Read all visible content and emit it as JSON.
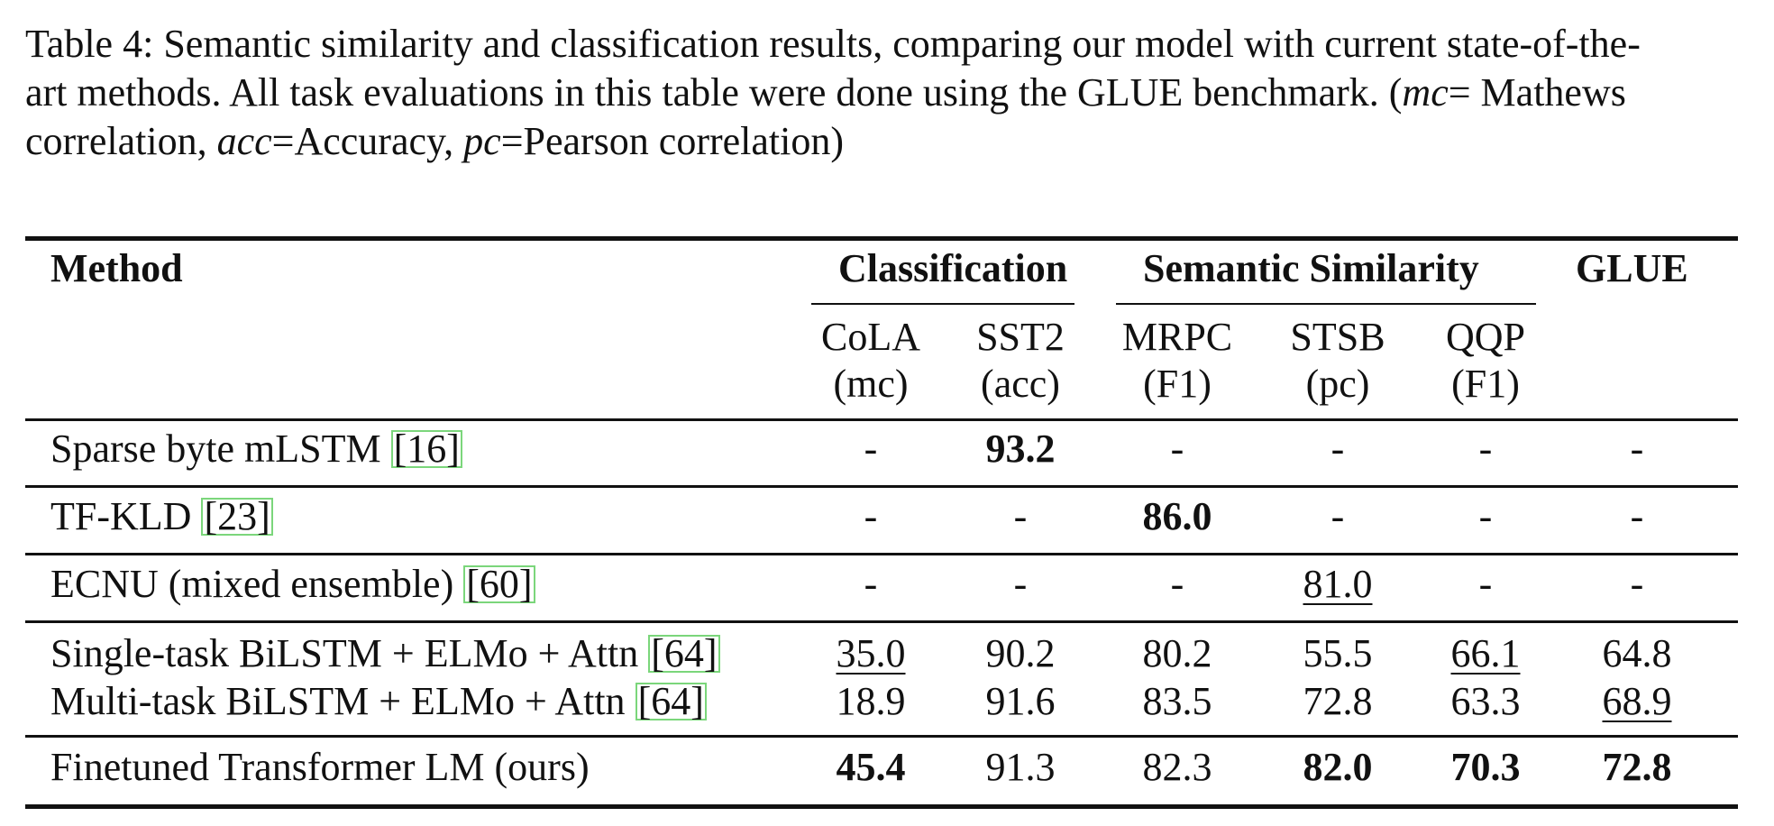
{
  "caption": {
    "line1": "Table 4: Semantic similarity and classification results, comparing our model with current state-of-the-",
    "line2_a": "art methods. All task evaluations in this table were done using the GLUE benchmark. (",
    "line2_mc": "mc",
    "line2_b": "= Mathews",
    "line3_a": "correlation, ",
    "line3_acc": "acc",
    "line3_b": "=Accuracy, ",
    "line3_pc": "pc",
    "line3_c": "=Pearson correlation)"
  },
  "header": {
    "method": "Method",
    "groups": {
      "classification": "Classification",
      "semantic": "Semantic Similarity",
      "glue": "GLUE"
    },
    "columns": [
      {
        "name": "CoLA",
        "metric": "(mc)"
      },
      {
        "name": "SST2",
        "metric": "(acc)"
      },
      {
        "name": "MRPC",
        "metric": "(F1)"
      },
      {
        "name": "STSB",
        "metric": "(pc)"
      },
      {
        "name": "QQP",
        "metric": "(F1)"
      }
    ]
  },
  "rows": [
    {
      "method": "Sparse byte mLSTM ",
      "ref": "[16]",
      "values": [
        "-",
        "93.2",
        "-",
        "-",
        "-",
        "-"
      ]
    },
    {
      "method": "TF-KLD ",
      "ref": "[23]",
      "values": [
        "-",
        "-",
        "86.0",
        "-",
        "-",
        "-"
      ]
    },
    {
      "method": "ECNU (mixed ensemble) ",
      "ref": "[60]",
      "values": [
        "-",
        "-",
        "-",
        "81.0",
        "-",
        "-"
      ]
    },
    {
      "method": "Single-task BiLSTM + ELMo + Attn ",
      "ref": "[64]",
      "values": [
        "35.0",
        "90.2",
        "80.2",
        "55.5",
        "66.1",
        "64.8"
      ]
    },
    {
      "method": "Multi-task BiLSTM + ELMo + Attn ",
      "ref": "[64]",
      "values": [
        "18.9",
        "91.6",
        "83.5",
        "72.8",
        "63.3",
        "68.9"
      ]
    },
    {
      "method": "Finetuned Transformer LM (ours)",
      "ref": "",
      "values": [
        "45.4",
        "91.3",
        "82.3",
        "82.0",
        "70.3",
        "72.8"
      ]
    }
  ]
}
